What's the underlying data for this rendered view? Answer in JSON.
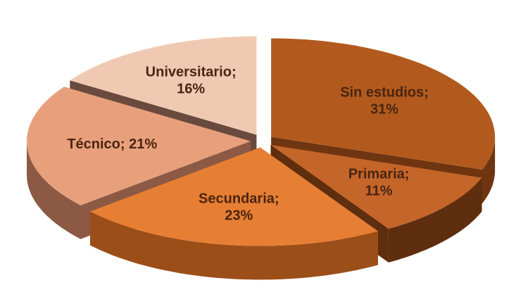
{
  "chart_data": {
    "type": "pie3d",
    "categories": [
      "Sin estudios;",
      "Primaria;",
      "Secundaria;",
      "Técnico;",
      "Universitario;"
    ],
    "values": [
      31,
      11,
      23,
      21,
      16
    ],
    "value_labels": [
      "31%",
      "11%",
      "23%",
      "21%",
      "16%"
    ],
    "colors": [
      "#b25a1d",
      "#c4652a",
      "#e67e34",
      "#e8a07c",
      "#f0c9b2"
    ],
    "side_colors": [
      "#6e3510",
      "#5e2e0e",
      "#9c4e18",
      "#8c5a44",
      "#6a4a3e"
    ]
  }
}
